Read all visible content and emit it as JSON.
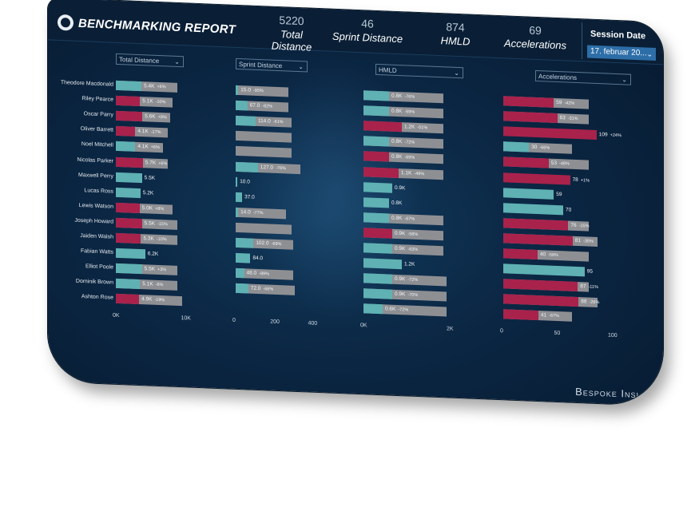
{
  "header": {
    "title": "BENCHMARKING REPORT",
    "kpis": [
      {
        "value": "5220",
        "label": "Total Distance"
      },
      {
        "value": "46",
        "label": "Sprint Distance"
      },
      {
        "value": "874",
        "label": "HMLD"
      },
      {
        "value": "69",
        "label": "Accelerations"
      }
    ],
    "session_date_label": "Session Date",
    "session_date_value": "17. februar 20..."
  },
  "colors": {
    "gray_bar": "#8e8f93",
    "teal": "#5fb1b3",
    "red": "#a8224c",
    "bg": "#0b2744"
  },
  "players": [
    "Theodore Macdonald",
    "Riley Pearce",
    "Oscar Parry",
    "Oliver Barrett",
    "Noel Mitchell",
    "Nicolas Parker",
    "Maxwell Perry",
    "Lucas Ross",
    "Lewis Watson",
    "Joseph Howard",
    "Jaiden Walsh",
    "Fabian Watts",
    "Elliot Poole",
    "Dominik Brown",
    "Ashton Rose"
  ],
  "panels": [
    {
      "dropdown": "Total Distance",
      "axis_ticks": [
        "0K",
        "10K"
      ],
      "max": 16,
      "bars": [
        {
          "bg": 13,
          "val": 5.4,
          "c": "t",
          "label": "5.4K",
          "pct": "+6%"
        },
        {
          "bg": 12,
          "val": 5.1,
          "c": "r",
          "label": "5.1K",
          "pct": "-10%"
        },
        {
          "bg": 11.5,
          "val": 5.6,
          "c": "r",
          "label": "5.6K",
          "pct": "+8%"
        },
        {
          "bg": 11,
          "val": 4.1,
          "c": "r",
          "label": "4.1K",
          "pct": "-17%"
        },
        {
          "bg": 10,
          "val": 4.1,
          "c": "t",
          "label": "4.1K",
          "pct": "+6%"
        },
        {
          "bg": 11,
          "val": 5.7,
          "c": "r",
          "label": "5.7K",
          "pct": "+6%"
        },
        {
          "bg": 0,
          "val": 5.5,
          "c": "t",
          "label": "5.5K",
          "pct": ""
        },
        {
          "bg": 0,
          "val": 5.2,
          "c": "t",
          "label": "5.2K",
          "pct": ""
        },
        {
          "bg": 12,
          "val": 5.0,
          "c": "r",
          "label": "5.0K",
          "pct": "+8%"
        },
        {
          "bg": 13,
          "val": 5.5,
          "c": "r",
          "label": "5.5K",
          "pct": "-15%"
        },
        {
          "bg": 13,
          "val": 5.3,
          "c": "r",
          "label": "5.3K",
          "pct": "-10%"
        },
        {
          "bg": 0,
          "val": 6.2,
          "c": "t",
          "label": "6.2K",
          "pct": ""
        },
        {
          "bg": 13,
          "val": 5.5,
          "c": "t",
          "label": "5.5K",
          "pct": "+3%"
        },
        {
          "bg": 13,
          "val": 5.1,
          "c": "t",
          "label": "5.1K",
          "pct": "-6%"
        },
        {
          "bg": 14,
          "val": 4.9,
          "c": "r",
          "label": "4.9K",
          "pct": "-19%"
        }
      ]
    },
    {
      "dropdown": "Sprint Distance",
      "axis_ticks": [
        "0",
        "200",
        "400"
      ],
      "max": 480,
      "bars": [
        {
          "bg": 300,
          "val": 15,
          "c": "t",
          "label": "15.0",
          "pct": "-95%"
        },
        {
          "bg": 300,
          "val": 67,
          "c": "t",
          "label": "67.0",
          "pct": "-82%"
        },
        {
          "bg": 320,
          "val": 114,
          "c": "t",
          "label": "114.0",
          "pct": "-61%"
        },
        {
          "bg": 320,
          "val": 0,
          "c": "t",
          "label": "",
          "pct": ""
        },
        {
          "bg": 320,
          "val": 0,
          "c": "t",
          "label": "",
          "pct": ""
        },
        {
          "bg": 370,
          "val": 127,
          "c": "t",
          "label": "127.0",
          "pct": "-76%"
        },
        {
          "bg": 0,
          "val": 10,
          "c": "t",
          "label": "10.0",
          "pct": ""
        },
        {
          "bg": 0,
          "val": 37,
          "c": "t",
          "label": "37.0",
          "pct": ""
        },
        {
          "bg": 290,
          "val": 14,
          "c": "t",
          "label": "14.0",
          "pct": "-77%"
        },
        {
          "bg": 320,
          "val": 0,
          "c": "t",
          "label": "",
          "pct": ""
        },
        {
          "bg": 330,
          "val": 102,
          "c": "t",
          "label": "102.0",
          "pct": "-69%"
        },
        {
          "bg": 0,
          "val": 84,
          "c": "t",
          "label": "84.0",
          "pct": ""
        },
        {
          "bg": 330,
          "val": 48,
          "c": "t",
          "label": "48.0",
          "pct": "-89%"
        },
        {
          "bg": 340,
          "val": 72,
          "c": "t",
          "label": "72.0",
          "pct": "-66%"
        },
        {
          "bg": 0,
          "val": 0,
          "c": "t",
          "label": "",
          "pct": ""
        }
      ]
    },
    {
      "dropdown": "HMLD",
      "axis_ticks": [
        "0K",
        "2K"
      ],
      "max": 3,
      "bars": [
        {
          "bg": 2.5,
          "val": 0.8,
          "c": "t",
          "label": "0.8K",
          "pct": "-76%"
        },
        {
          "bg": 2.5,
          "val": 0.8,
          "c": "t",
          "label": "0.8K",
          "pct": "-69%"
        },
        {
          "bg": 2.5,
          "val": 1.2,
          "c": "r",
          "label": "1.2K",
          "pct": "-51%"
        },
        {
          "bg": 2.5,
          "val": 0.8,
          "c": "t",
          "label": "0.8K",
          "pct": "-72%"
        },
        {
          "bg": 2.5,
          "val": 0.8,
          "c": "r",
          "label": "0.8K",
          "pct": "-69%"
        },
        {
          "bg": 2.5,
          "val": 1.1,
          "c": "r",
          "label": "1.1K",
          "pct": "-49%"
        },
        {
          "bg": 0,
          "val": 0.9,
          "c": "t",
          "label": "0.9K",
          "pct": ""
        },
        {
          "bg": 0,
          "val": 0.8,
          "c": "t",
          "label": "0.8K",
          "pct": ""
        },
        {
          "bg": 2.5,
          "val": 0.8,
          "c": "t",
          "label": "0.8K",
          "pct": "-67%"
        },
        {
          "bg": 2.5,
          "val": 0.9,
          "c": "r",
          "label": "0.9K",
          "pct": "-58%"
        },
        {
          "bg": 2.5,
          "val": 0.9,
          "c": "t",
          "label": "0.9K",
          "pct": "-63%"
        },
        {
          "bg": 0,
          "val": 1.2,
          "c": "t",
          "label": "1.2K",
          "pct": ""
        },
        {
          "bg": 2.6,
          "val": 0.9,
          "c": "t",
          "label": "0.9K",
          "pct": "-72%"
        },
        {
          "bg": 2.6,
          "val": 0.9,
          "c": "t",
          "label": "0.9K",
          "pct": "-70%"
        },
        {
          "bg": 2.6,
          "val": 0.6,
          "c": "t",
          "label": "0.6K",
          "pct": "-72%"
        }
      ]
    },
    {
      "dropdown": "Accelerations",
      "axis_ticks": [
        "0",
        "50",
        "100"
      ],
      "max": 140,
      "bars": [
        {
          "bg": 100,
          "val": 59,
          "c": "r",
          "label": "59",
          "pct": "-42%"
        },
        {
          "bg": 100,
          "val": 63,
          "c": "r",
          "label": "63",
          "pct": "-31%"
        },
        {
          "bg": 0,
          "val": 109,
          "c": "r",
          "label": "109",
          "pct": "+24%"
        },
        {
          "bg": 80,
          "val": 30,
          "c": "t",
          "label": "30",
          "pct": "-66%"
        },
        {
          "bg": 100,
          "val": 53,
          "c": "r",
          "label": "53",
          "pct": "-48%"
        },
        {
          "bg": 0,
          "val": 78,
          "c": "r",
          "label": "78",
          "pct": "+1%"
        },
        {
          "bg": 0,
          "val": 59,
          "c": "t",
          "label": "59",
          "pct": ""
        },
        {
          "bg": 0,
          "val": 70,
          "c": "t",
          "label": "70",
          "pct": ""
        },
        {
          "bg": 100,
          "val": 76,
          "c": "r",
          "label": "76",
          "pct": "-15%"
        },
        {
          "bg": 110,
          "val": 81,
          "c": "r",
          "label": "81",
          "pct": "-35%"
        },
        {
          "bg": 100,
          "val": 40,
          "c": "r",
          "label": "40",
          "pct": "-58%"
        },
        {
          "bg": 0,
          "val": 95,
          "c": "t",
          "label": "95",
          "pct": ""
        },
        {
          "bg": 100,
          "val": 87,
          "c": "r",
          "label": "87",
          "pct": "-11%"
        },
        {
          "bg": 110,
          "val": 88,
          "c": "r",
          "label": "88",
          "pct": "-26%"
        },
        {
          "bg": 80,
          "val": 41,
          "c": "r",
          "label": "41",
          "pct": "-67%"
        }
      ]
    }
  ],
  "brand": "Bespoke Insi"
}
